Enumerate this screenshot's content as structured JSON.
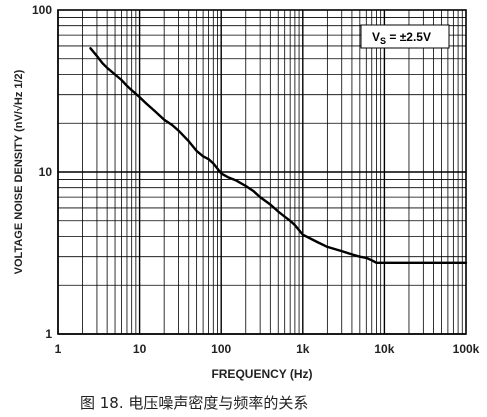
{
  "chart_data": {
    "type": "line",
    "xlabel": "FREQUENCY (Hz)",
    "ylabel": "VOLTAGE NOISE DENSITY (nV/√Hz 1/2)",
    "xscale": "log",
    "yscale": "log",
    "xlim": [
      1,
      100000
    ],
    "ylim": [
      1,
      100
    ],
    "x_ticks": [
      "1",
      "10",
      "100",
      "1k",
      "10k",
      "100k"
    ],
    "y_ticks": [
      "1",
      "10",
      "100"
    ],
    "grid": true,
    "annotation": {
      "main": "V",
      "sub": "S",
      "rest": " = ±2.5V"
    },
    "series": [
      {
        "color": "#000000",
        "x": [
          2.5,
          3,
          3.5,
          4,
          5,
          6,
          7,
          8,
          10,
          12,
          15,
          20,
          25,
          30,
          40,
          50,
          60,
          70,
          80,
          100,
          120,
          150,
          200,
          250,
          300,
          400,
          500,
          600,
          700,
          800,
          1000,
          1500,
          2000,
          3000,
          4000,
          5000,
          6000,
          7000,
          8000,
          10000,
          20000,
          50000,
          100000
        ],
        "y": [
          58,
          52,
          47,
          44,
          40,
          37,
          34,
          32,
          29,
          26.5,
          24,
          21,
          19.5,
          18,
          15.5,
          13.5,
          12.5,
          12,
          11.3,
          9.8,
          9.3,
          8.9,
          8.2,
          7.6,
          7.0,
          6.3,
          5.7,
          5.3,
          5.0,
          4.7,
          4.1,
          3.7,
          3.45,
          3.25,
          3.1,
          3.0,
          2.95,
          2.85,
          2.75,
          2.75,
          2.75,
          2.75,
          2.75
        ]
      }
    ]
  },
  "caption": "图 18. 电压噪声密度与频率的关系"
}
